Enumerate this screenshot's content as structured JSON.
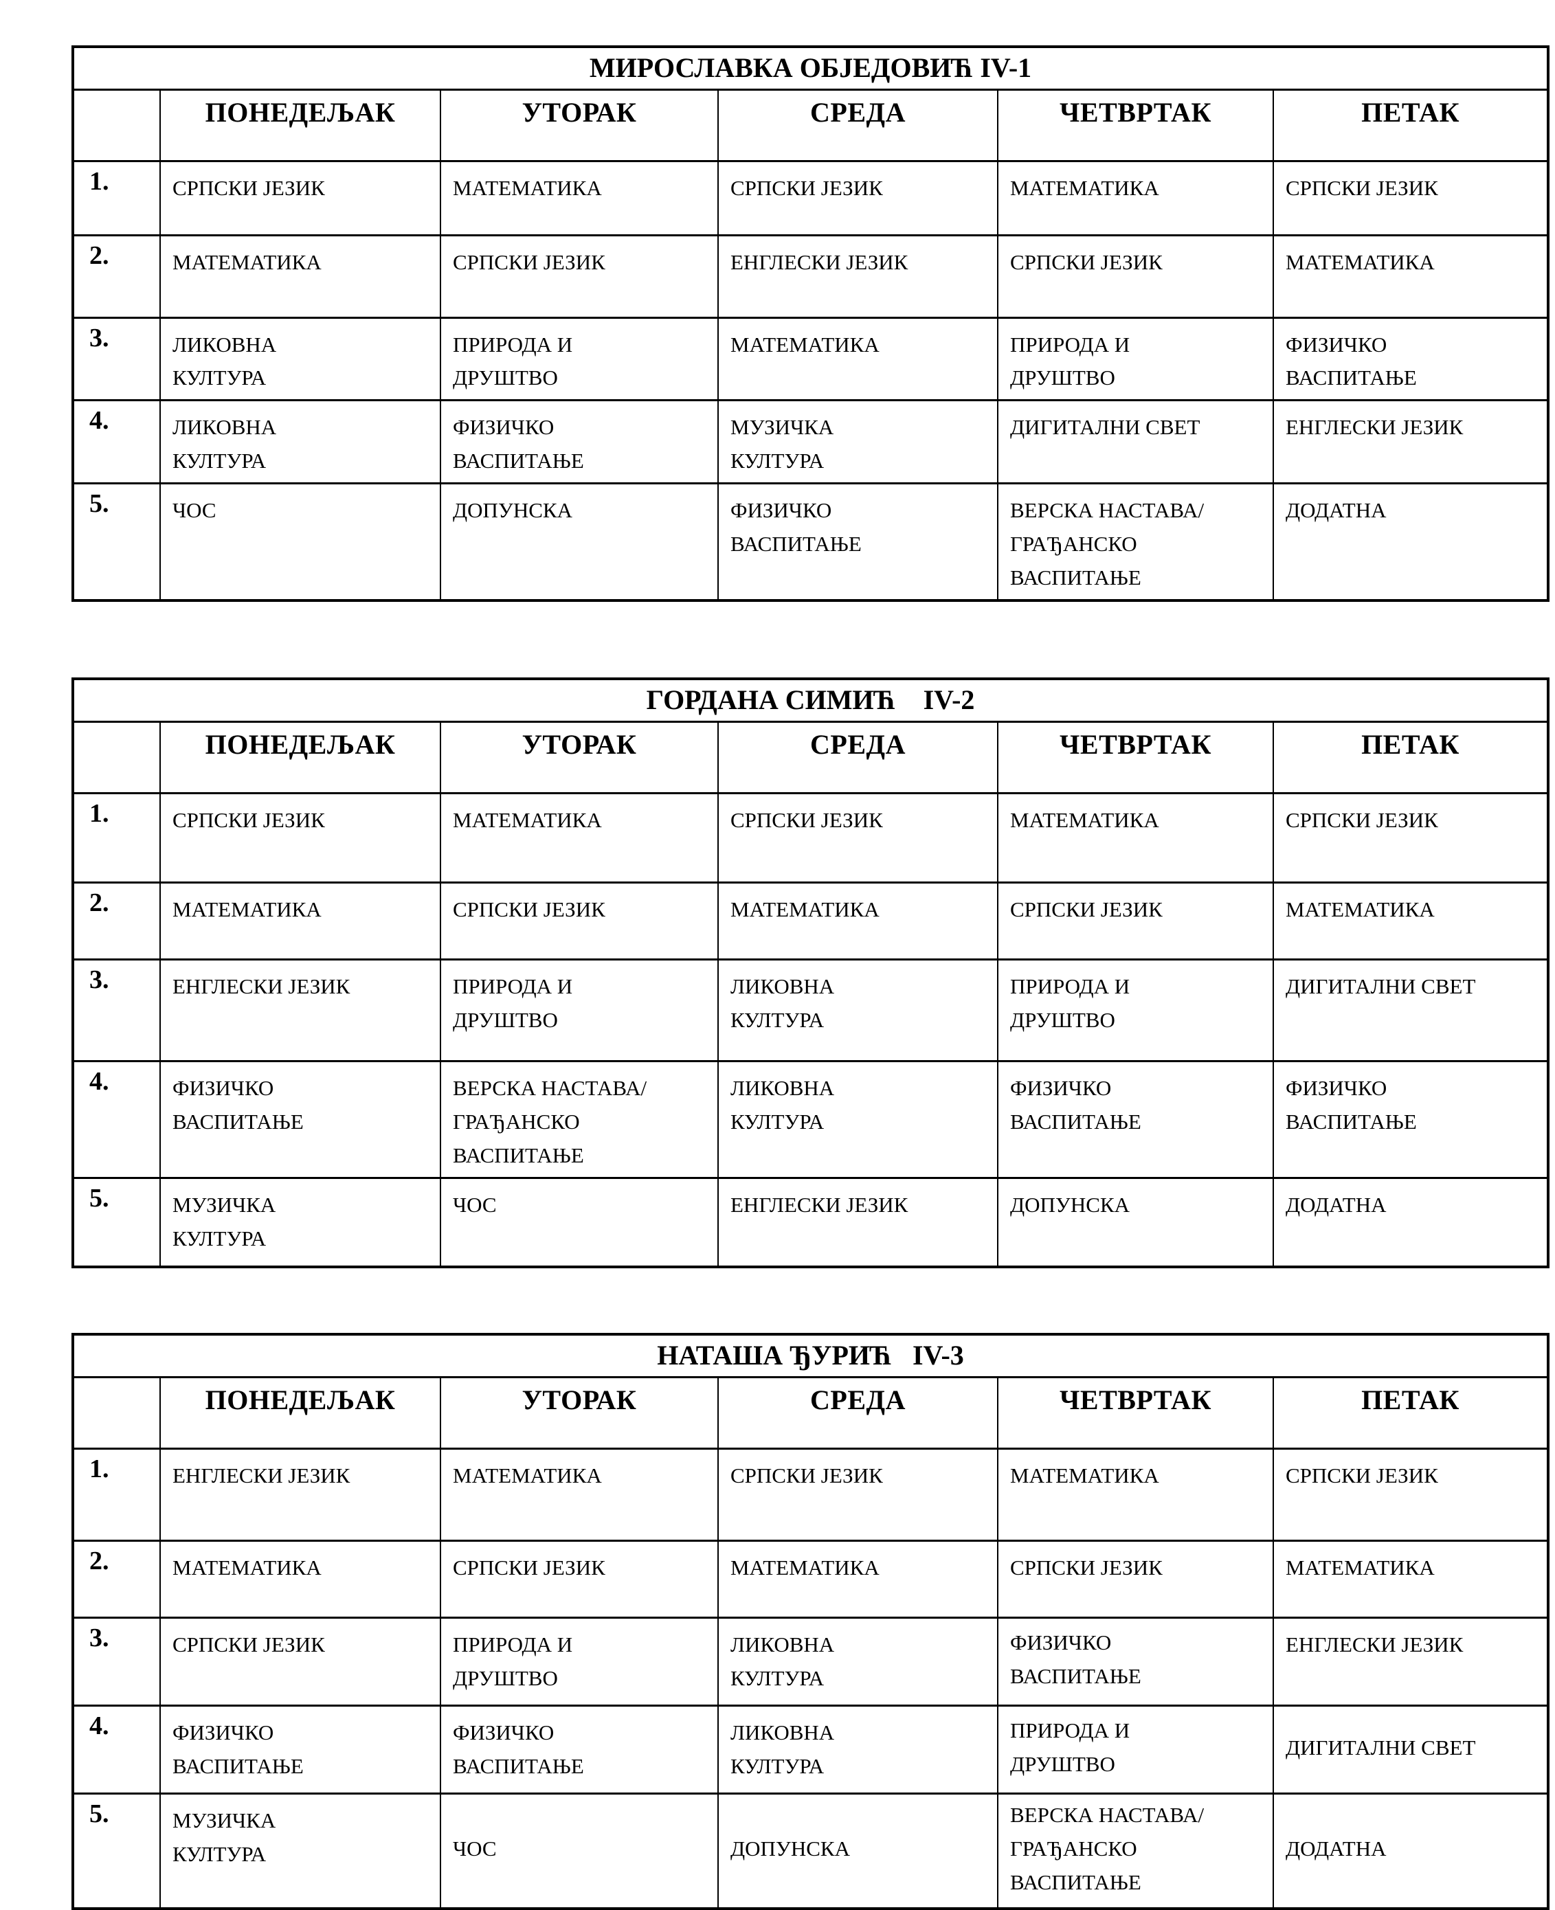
{
  "page": {
    "background_color": "#ffffff",
    "text_color": "#000000"
  },
  "tables": [
    {
      "title": "МИРОСЛАВКА ОБЈЕДОВИЋ IV-1",
      "days": [
        "ПОНЕДЕЉАК",
        "УТОРАК",
        "СРЕДА",
        "ЧЕТВРТАК",
        "ПЕТАК"
      ],
      "rows": [
        {
          "num": "1.",
          "cells": [
            "СРПСКИ ЈЕЗИК",
            "МАТЕМАТИКА",
            "СРПСКИ ЈЕЗИК",
            "МАТЕМАТИКА",
            "СРПСКИ ЈЕЗИК"
          ]
        },
        {
          "num": "2.",
          "cells": [
            "МАТЕМАТИКА",
            "СРПСКИ ЈЕЗИК",
            "ЕНГЛЕСКИ ЈЕЗИК",
            "СРПСКИ ЈЕЗИК",
            "МАТЕМАТИКА"
          ]
        },
        {
          "num": "3.",
          "cells": [
            "ЛИКОВНА\nКУЛТУРА",
            "ПРИРОДА И\nДРУШТВО",
            "МАТЕМАТИКА",
            "ПРИРОДА И\nДРУШТВО",
            "ФИЗИЧКО\nВАСПИТАЊЕ"
          ]
        },
        {
          "num": "4.",
          "cells": [
            "ЛИКОВНА\nКУЛТУРА",
            "ФИЗИЧКО\nВАСПИТАЊЕ",
            "МУЗИЧКА\nКУЛТУРА",
            "ДИГИТАЛНИ СВЕТ",
            "ЕНГЛЕСКИ ЈЕЗИК"
          ]
        },
        {
          "num": "5.",
          "cells": [
            "ЧОС",
            "ДОПУНСКА",
            "ФИЗИЧКО\nВАСПИТАЊЕ",
            "ВЕРСКА НАСТАВА/\nГРАЂАНСКО\nВАСПИТАЊЕ",
            "ДОДАТНА"
          ]
        }
      ],
      "middle_cells": []
    },
    {
      "title": "ГОРДАНА СИМИЋ    IV-2",
      "days": [
        "ПОНЕДЕЉАК",
        "УТОРАК",
        "СРЕДА",
        "ЧЕТВРТАК",
        "ПЕТАК"
      ],
      "rows": [
        {
          "num": "1.",
          "cells": [
            "СРПСКИ ЈЕЗИК",
            "МАТЕМАТИКА",
            "СРПСКИ ЈЕЗИК",
            "МАТЕМАТИКА",
            "СРПСКИ ЈЕЗИК"
          ]
        },
        {
          "num": "2.",
          "cells": [
            "МАТЕМАТИКА",
            "СРПСКИ ЈЕЗИК",
            "МАТЕМАТИКА",
            "СРПСКИ ЈЕЗИК",
            "МАТЕМАТИКА"
          ]
        },
        {
          "num": "3.",
          "cells": [
            "ЕНГЛЕСКИ ЈЕЗИК",
            "ПРИРОДА И\nДРУШТВО",
            "ЛИКОВНА\nКУЛТУРА",
            "ПРИРОДА И\nДРУШТВО",
            "ДИГИТАЛНИ СВЕТ"
          ]
        },
        {
          "num": "4.",
          "cells": [
            "ФИЗИЧКО\nВАСПИТАЊЕ",
            "ВЕРСКА НАСТАВА/\nГРАЂАНСКО\nВАСПИТАЊЕ",
            "ЛИКОВНА\nКУЛТУРА",
            "ФИЗИЧКО\nВАСПИТАЊЕ",
            "ФИЗИЧКО\nВАСПИТАЊЕ"
          ]
        },
        {
          "num": "5.",
          "cells": [
            "МУЗИЧКА\nКУЛТУРА",
            "ЧОС",
            "ЕНГЛЕСКИ ЈЕЗИК",
            "ДОПУНСКА",
            "ДОДАТНА"
          ]
        }
      ],
      "middle_cells": []
    },
    {
      "title": "НАТАША ЂУРИЋ   IV-3",
      "days": [
        "ПОНЕДЕЉАК",
        "УТОРАК",
        "СРЕДА",
        "ЧЕТВРТАК",
        "ПЕТАК"
      ],
      "rows": [
        {
          "num": "1.",
          "cells": [
            "ЕНГЛЕСКИ ЈЕЗИК",
            "МАТЕМАТИКА",
            "СРПСКИ ЈЕЗИК",
            "МАТЕМАТИКА",
            "СРПСКИ ЈЕЗИК"
          ]
        },
        {
          "num": "2.",
          "cells": [
            "МАТЕМАТИКА",
            "СРПСКИ ЈЕЗИК",
            "МАТЕМАТИКА",
            "СРПСКИ ЈЕЗИК",
            "МАТЕМАТИКА"
          ]
        },
        {
          "num": "3.",
          "cells": [
            "СРПСКИ ЈЕЗИК",
            "ПРИРОДА И\nДРУШТВО",
            "ЛИКОВНА\nКУЛТУРА",
            "ФИЗИЧКО\nВАСПИТАЊЕ",
            "ЕНГЛЕСКИ ЈЕЗИК"
          ]
        },
        {
          "num": "4.",
          "cells": [
            "ФИЗИЧКО\nВАСПИТАЊЕ",
            "ФИЗИЧКО\nВАСПИТАЊЕ",
            "ЛИКОВНА\nКУЛТУРА",
            "ПРИРОДА И\nДРУШТВО",
            "ДИГИТАЛНИ СВЕТ"
          ]
        },
        {
          "num": "5.",
          "cells": [
            "МУЗИЧКА\nКУЛТУРА",
            "ЧОС",
            "ДОПУНСКА",
            "ВЕРСКА НАСТАВА/\nГРАЂАНСКО\nВАСПИТАЊЕ",
            "ДОДАТНА"
          ]
        }
      ],
      "middle_cells": [
        [
          2,
          3
        ],
        [
          3,
          3
        ],
        [
          3,
          4
        ],
        [
          4,
          1
        ],
        [
          4,
          2
        ],
        [
          4,
          3
        ],
        [
          4,
          4
        ]
      ]
    }
  ]
}
